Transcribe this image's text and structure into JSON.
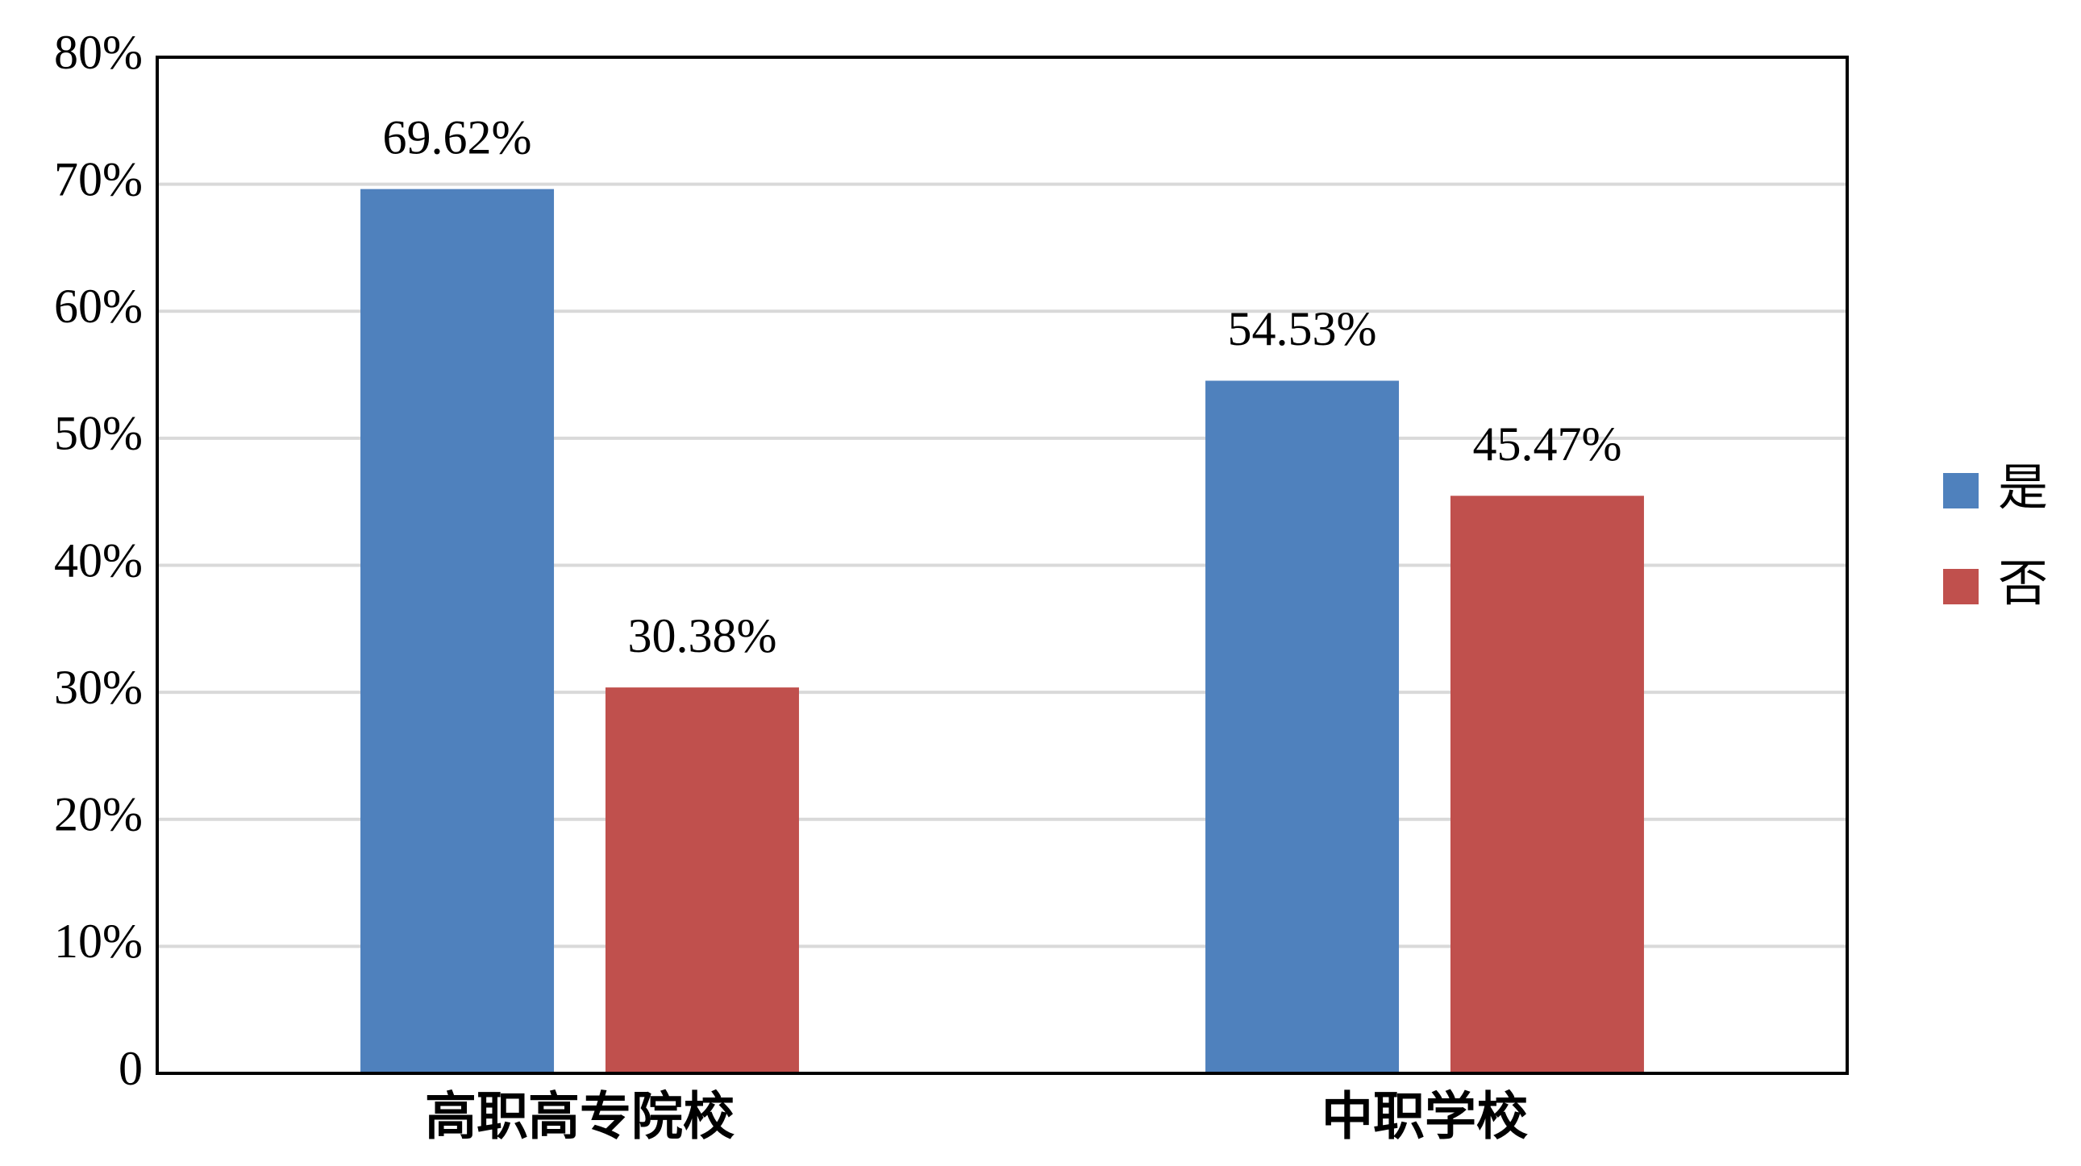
{
  "chart_data": {
    "type": "bar",
    "categories": [
      "高职高专院校",
      "中职学校"
    ],
    "series": [
      {
        "name": "是",
        "color": "#4f81bd",
        "values": [
          69.62,
          54.53
        ],
        "value_labels": [
          "69.62%",
          "54.53%"
        ]
      },
      {
        "name": "否",
        "color": "#c0504d",
        "values": [
          30.38,
          45.47
        ],
        "value_labels": [
          "30.38%",
          "45.47%"
        ]
      }
    ],
    "ylim": [
      0,
      80
    ],
    "yticks": [
      0,
      {
        "value": 10,
        "label": "10%"
      },
      {
        "value": 20,
        "label": "20%"
      },
      {
        "value": 30,
        "label": "30%"
      },
      {
        "value": 40,
        "label": "40%"
      },
      {
        "value": 50,
        "label": "50%"
      },
      {
        "value": 60,
        "label": "60%"
      },
      {
        "value": 70,
        "label": "70%"
      },
      {
        "value": 80,
        "label": "80%"
      }
    ],
    "grid": true,
    "legend": "right"
  }
}
